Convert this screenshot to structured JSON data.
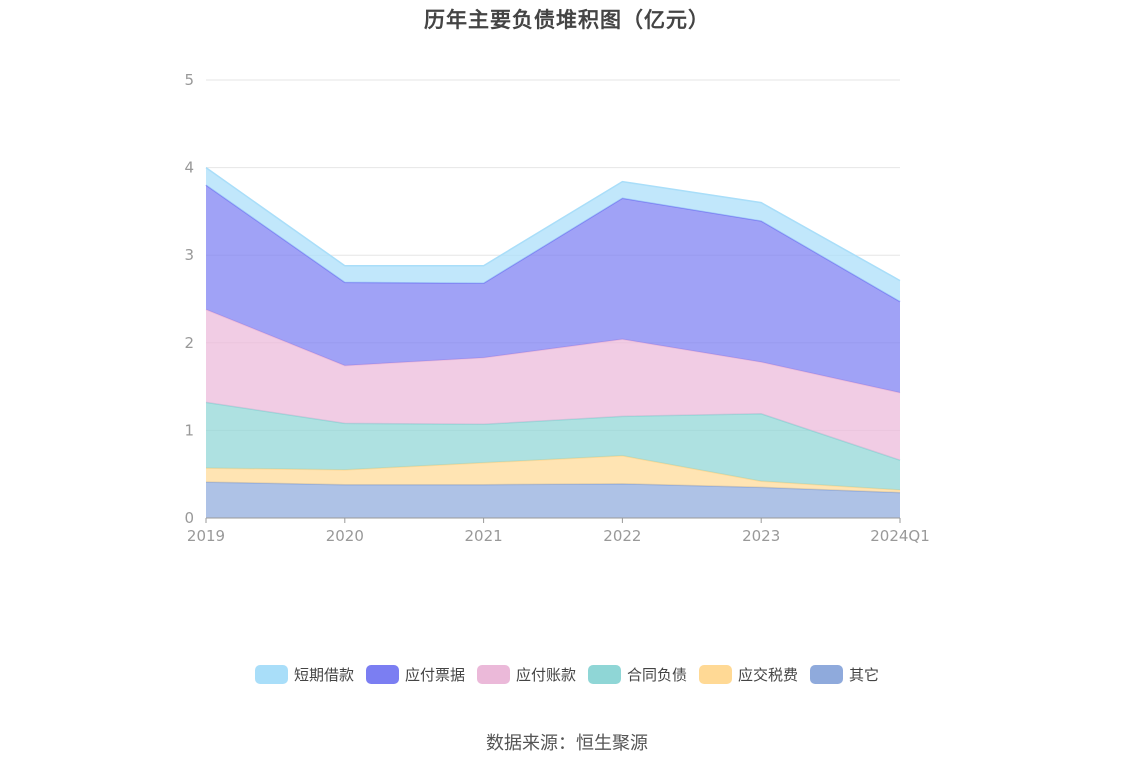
{
  "title": "历年主要负债堆积图（亿元）",
  "source_note": "数据来源：恒生聚源",
  "chart_data": {
    "type": "area",
    "stacked": true,
    "categories": [
      "2019",
      "2020",
      "2021",
      "2022",
      "2023",
      "2024Q1"
    ],
    "ylim": [
      0,
      5
    ],
    "yticks": [
      "0",
      "1",
      "2",
      "3",
      "4",
      "5"
    ],
    "grid": true,
    "legend_position": "bottom-center",
    "series": [
      {
        "name": "其它",
        "color": "#8faadc",
        "values": [
          0.41,
          0.38,
          0.38,
          0.39,
          0.35,
          0.29
        ]
      },
      {
        "name": "应交税费",
        "color": "#ffd995",
        "values": [
          0.16,
          0.17,
          0.25,
          0.32,
          0.07,
          0.03
        ]
      },
      {
        "name": "合同负债",
        "color": "#8fd6d6",
        "values": [
          0.75,
          0.53,
          0.44,
          0.45,
          0.77,
          0.34
        ]
      },
      {
        "name": "应付账款",
        "color": "#ebb9d9",
        "values": [
          1.06,
          0.66,
          0.76,
          0.88,
          0.59,
          0.77
        ]
      },
      {
        "name": "应付票据",
        "color": "#7b7ef2",
        "values": [
          1.42,
          0.95,
          0.85,
          1.61,
          1.61,
          1.04
        ]
      },
      {
        "name": "短期借款",
        "color": "#a9def9",
        "values": [
          0.2,
          0.19,
          0.2,
          0.19,
          0.21,
          0.24
        ]
      }
    ]
  },
  "legend_order": [
    "短期借款",
    "应付票据",
    "应付账款",
    "合同负债",
    "应交税费",
    "其它"
  ]
}
